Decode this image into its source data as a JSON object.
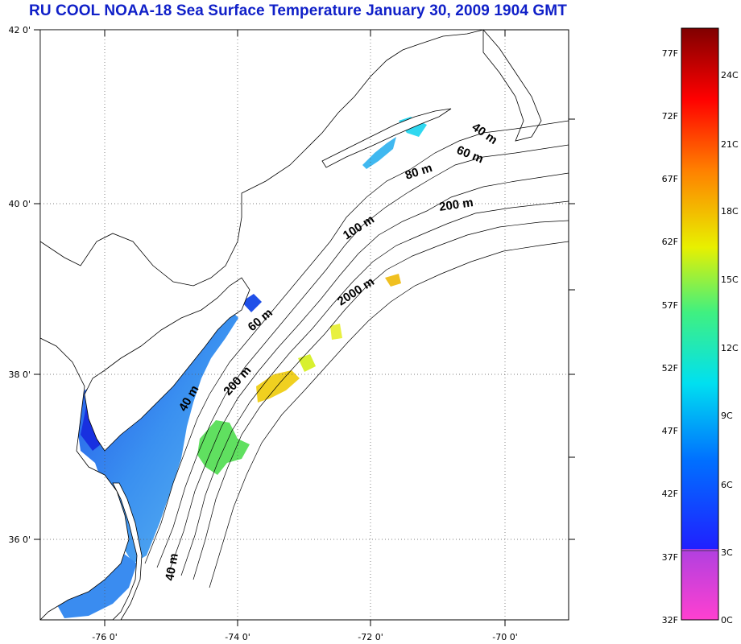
{
  "title": "RU COOL  NOAA-18 Sea Surface Temperature January 30, 2009 1904 GMT",
  "axes": {
    "longitude_ticks": [
      "-76 0'",
      "-74 0'",
      "-72 0'",
      "-70 0'"
    ],
    "latitude_ticks": [
      "42 0'",
      "40 0'",
      "38 0'",
      "36 0'"
    ]
  },
  "contour_labels": [
    "40 m",
    "60 m",
    "80 m",
    "200 m",
    "100 m",
    "2000 m",
    "60 m",
    "200 m",
    "40 m",
    "40 m"
  ],
  "colorbar": {
    "fahrenheit_labels": [
      "77F",
      "72F",
      "67F",
      "62F",
      "57F",
      "52F",
      "47F",
      "42F",
      "37F",
      "32F"
    ],
    "celsius_labels": [
      "24C",
      "21C",
      "18C",
      "15C",
      "12C",
      "9C",
      "6C",
      "3C",
      "0C"
    ],
    "colors": [
      "#ff40d0",
      "#b040e0",
      "#2020ff",
      "#0070ff",
      "#00e0f0",
      "#40f080",
      "#e8f000",
      "#ff8000",
      "#ff0000",
      "#800000"
    ]
  }
}
